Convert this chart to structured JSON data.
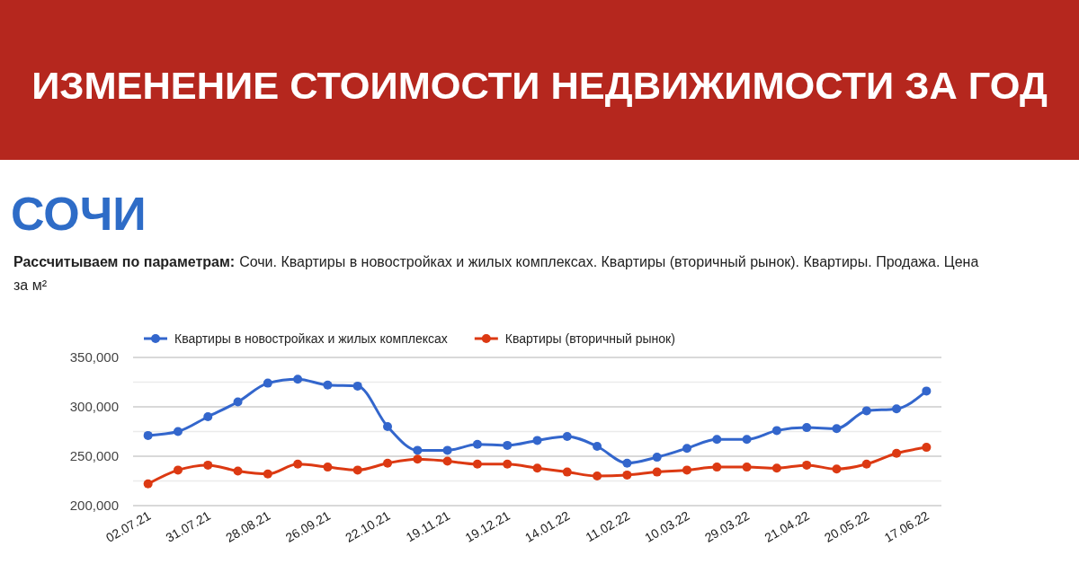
{
  "chart_data": {
    "type": "line",
    "title": "ИЗМЕНЕНИЕ СТОИМОСТИ НЕДВИЖИМОСТИ ЗА ГОД",
    "subtitle": "СОЧИ",
    "annotations": [
      "Рассчитываем по параметрам:",
      "Сочи. Квартиры в новостройках и жилых комплексах. Квартиры (вторичный рынок). Квартиры. Продажа. Цена за м²"
    ],
    "categories": [
      "02.07.21",
      null,
      "31.07.21",
      null,
      "28.08.21",
      null,
      "26.09.21",
      null,
      "22.10.21",
      null,
      "19.11.21",
      null,
      "19.12.21",
      null,
      "14.01.22",
      null,
      "11.02.22",
      null,
      "10.03.22",
      null,
      "29.03.22",
      null,
      "21.04.22",
      null,
      "20.05.22",
      null,
      "17.06.22"
    ],
    "series": [
      {
        "name": "Квартиры в новостройках и жилых комплексах",
        "color": "#3366cc",
        "values": [
          271000,
          275000,
          290000,
          305000,
          324000,
          328000,
          322000,
          321000,
          280000,
          256000,
          256000,
          262000,
          261000,
          266000,
          270000,
          260000,
          243000,
          249000,
          258000,
          267000,
          267000,
          276000,
          279000,
          278000,
          296000,
          298000,
          316000
        ]
      },
      {
        "name": "Квартиры (вторичный рынок)",
        "color": "#dc3912",
        "values": [
          222000,
          236000,
          241000,
          235000,
          232000,
          242000,
          239000,
          236000,
          243000,
          247000,
          245000,
          242000,
          242000,
          238000,
          234000,
          230000,
          231000,
          234000,
          236000,
          239000,
          239000,
          238000,
          241000,
          237000,
          242000,
          253000,
          259000
        ]
      }
    ],
    "ylim": [
      200000,
      350000
    ],
    "yticks": [
      {
        "value": 200000,
        "label": "200,000"
      },
      {
        "value": 225000,
        "label": null
      },
      {
        "value": 250000,
        "label": "250,000"
      },
      {
        "value": 275000,
        "label": null
      },
      {
        "value": 300000,
        "label": "300,000"
      },
      {
        "value": 325000,
        "label": null
      },
      {
        "value": 350000,
        "label": "350,000"
      }
    ],
    "grid": "y",
    "legend": "top left",
    "marker": "circle",
    "line_style": "solid"
  }
}
